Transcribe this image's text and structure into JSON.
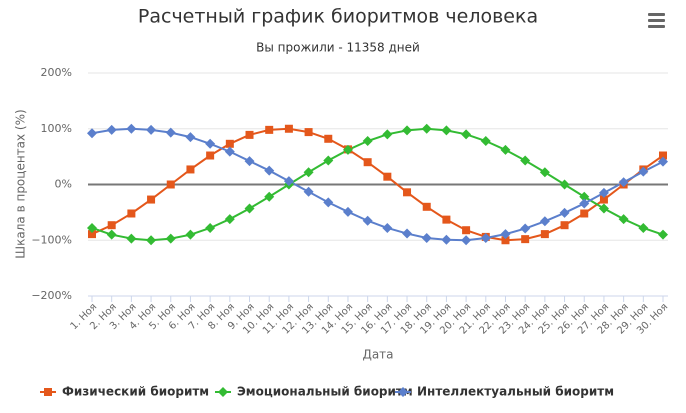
{
  "chart_data": {
    "type": "line",
    "title": "Расчетный график биоритмов человека",
    "subtitle": "Вы прожили - 11358 дней",
    "x_label": "Дата",
    "y_label": "Шкала в процентах (%)",
    "categories": [
      "1. Ноя",
      "2. Ноя",
      "3. Ноя",
      "4. Ноя",
      "5. Ноя",
      "6. Ноя",
      "7. Ноя",
      "8. Ноя",
      "9. Ноя",
      "10. Ноя",
      "11. Ноя",
      "12. Ноя",
      "13. Ноя",
      "14. Ноя",
      "15. Ноя",
      "16. Ноя",
      "17. Ноя",
      "18. Ноя",
      "19. Ноя",
      "20. Ноя",
      "21. Ноя",
      "22. Ноя",
      "23. Ноя",
      "24. Ноя",
      "25. Ноя",
      "26. Ноя",
      "27. Ноя",
      "28. Ноя",
      "29. Ноя",
      "30. Ноя"
    ],
    "series": [
      {
        "name": "Физический биоритм",
        "color": "#e4571b",
        "marker": "square",
        "values": [
          -89,
          -73,
          -52,
          -27,
          0,
          27,
          52,
          73,
          89,
          98,
          100,
          94,
          82,
          63,
          40,
          14,
          -14,
          -40,
          -63,
          -82,
          -94,
          -100,
          -98,
          -89,
          -73,
          -52,
          -27,
          0,
          27,
          52
        ]
      },
      {
        "name": "Эмоциональный биоритм",
        "color": "#33bb33",
        "marker": "diamond",
        "values": [
          -78,
          -90,
          -97,
          -100,
          -97,
          -90,
          -78,
          -62,
          -43,
          -22,
          0,
          22,
          43,
          62,
          78,
          90,
          97,
          100,
          97,
          90,
          78,
          62,
          43,
          22,
          0,
          -22,
          -43,
          -62,
          -78,
          -90
        ]
      },
      {
        "name": "Интеллектуальный биоритм",
        "color": "#5b7fcc",
        "marker": "diamond",
        "values": [
          92,
          98,
          100,
          98,
          93,
          85,
          73,
          59,
          42,
          25,
          6,
          -13,
          -32,
          -49,
          -65,
          -78,
          -88,
          -96,
          -99,
          -100,
          -96,
          -89,
          -79,
          -66,
          -51,
          -34,
          -15,
          4,
          23,
          41
        ]
      }
    ],
    "ylim": [
      -200,
      200
    ],
    "yticks": [
      {
        "value": -200,
        "label": "−200%"
      },
      {
        "value": -100,
        "label": "−100%"
      },
      {
        "value": 0,
        "label": "0%"
      },
      {
        "value": 100,
        "label": "100%"
      },
      {
        "value": 200,
        "label": "200%"
      }
    ],
    "grid": true
  }
}
